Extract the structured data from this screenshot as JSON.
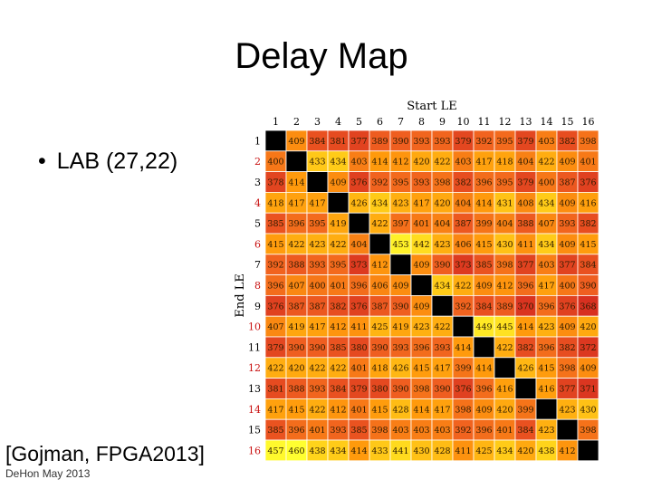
{
  "slide": {
    "title": "Delay Map",
    "bullet": "LAB (27,22)",
    "citation": "[Gojman, FPGA2013]",
    "footer": "DeHon May 2013"
  },
  "chart_data": {
    "type": "heatmap",
    "xlabel": "Start LE",
    "ylabel": "End LE",
    "x_categories": [
      "1",
      "2",
      "3",
      "4",
      "5",
      "6",
      "7",
      "8",
      "9",
      "10",
      "11",
      "12",
      "13",
      "14",
      "15",
      "16"
    ],
    "y_categories": [
      "1",
      "2",
      "3",
      "4",
      "5",
      "6",
      "7",
      "8",
      "9",
      "10",
      "11",
      "12",
      "13",
      "14",
      "15",
      "16"
    ],
    "values": [
      [
        null,
        409,
        384,
        381,
        377,
        389,
        390,
        393,
        393,
        379,
        392,
        395,
        379,
        403,
        382,
        398
      ],
      [
        400,
        null,
        433,
        434,
        403,
        414,
        412,
        420,
        422,
        403,
        417,
        418,
        404,
        422,
        409,
        401
      ],
      [
        378,
        414,
        null,
        409,
        376,
        392,
        395,
        393,
        398,
        382,
        396,
        395,
        379,
        400,
        387,
        376
      ],
      [
        418,
        417,
        417,
        null,
        426,
        434,
        423,
        417,
        420,
        404,
        414,
        431,
        408,
        434,
        409,
        416
      ],
      [
        385,
        396,
        395,
        419,
        null,
        422,
        397,
        401,
        404,
        387,
        399,
        404,
        388,
        407,
        393,
        382
      ],
      [
        415,
        422,
        423,
        422,
        404,
        null,
        453,
        442,
        423,
        406,
        415,
        430,
        411,
        434,
        409,
        415
      ],
      [
        392,
        388,
        393,
        395,
        373,
        412,
        null,
        409,
        390,
        373,
        385,
        398,
        377,
        403,
        377,
        384
      ],
      [
        396,
        407,
        400,
        401,
        396,
        406,
        409,
        null,
        434,
        422,
        409,
        412,
        396,
        417,
        400,
        390
      ],
      [
        376,
        387,
        387,
        382,
        376,
        387,
        390,
        409,
        null,
        392,
        384,
        389,
        370,
        396,
        376,
        368
      ],
      [
        407,
        419,
        417,
        412,
        411,
        425,
        419,
        423,
        422,
        null,
        449,
        445,
        414,
        423,
        409,
        420
      ],
      [
        379,
        390,
        390,
        385,
        380,
        390,
        393,
        396,
        393,
        414,
        null,
        422,
        382,
        396,
        382,
        372
      ],
      [
        422,
        420,
        422,
        422,
        401,
        418,
        426,
        415,
        417,
        399,
        414,
        null,
        426,
        415,
        398,
        409
      ],
      [
        381,
        388,
        393,
        384,
        379,
        380,
        390,
        398,
        390,
        376,
        396,
        416,
        null,
        416,
        377,
        371
      ],
      [
        417,
        415,
        422,
        412,
        401,
        415,
        428,
        414,
        417,
        398,
        409,
        420,
        399,
        null,
        423,
        430
      ],
      [
        385,
        396,
        401,
        393,
        385,
        398,
        403,
        403,
        403,
        392,
        396,
        401,
        384,
        423,
        null,
        398
      ],
      [
        457,
        460,
        438,
        434,
        414,
        433,
        441,
        430,
        428,
        411,
        425,
        434,
        420,
        438,
        412,
        null
      ]
    ],
    "colorscale": [
      "#ffff30",
      "#ffd21a",
      "#ff9a0c",
      "#f06020",
      "#d83020"
    ],
    "diagonal_color": "#000000",
    "grid": true
  }
}
